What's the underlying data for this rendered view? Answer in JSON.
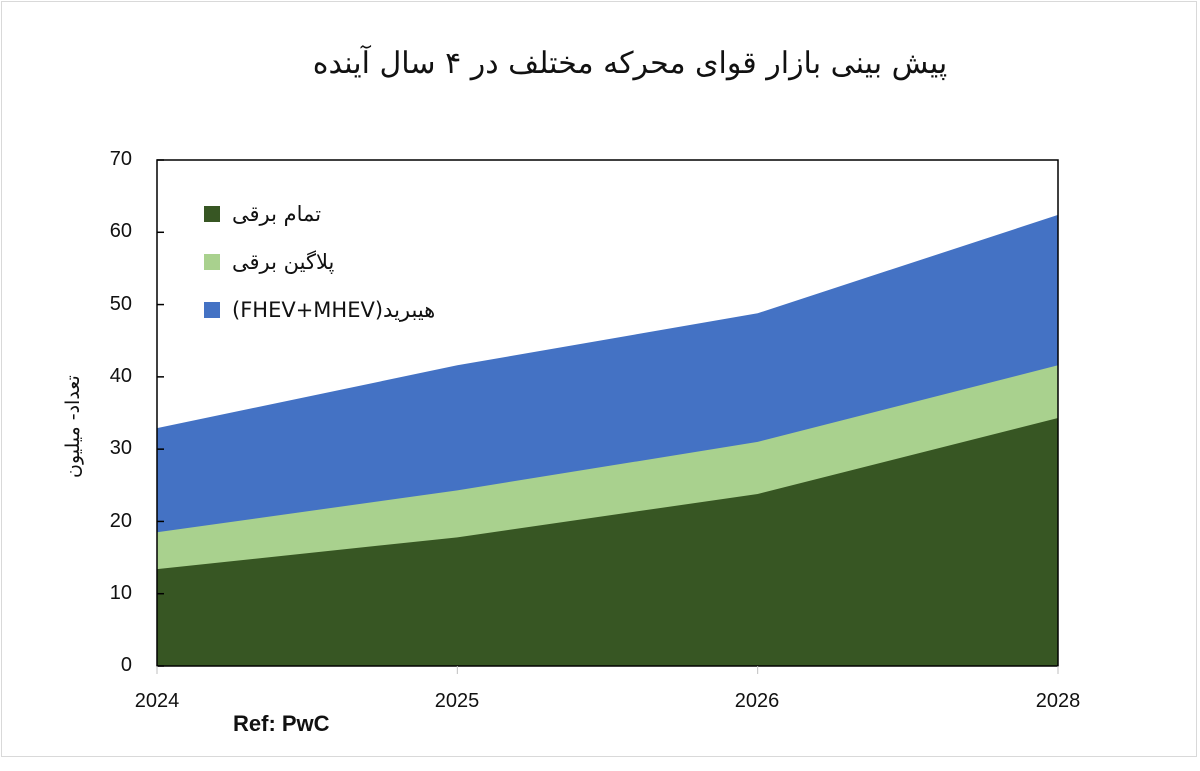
{
  "chart_data": {
    "type": "area",
    "stacked": true,
    "title": "پیش بینی بازار قوای محرکه مختلف در ۴ سال آینده",
    "xlabel": "",
    "ylabel": "تعداد- میلیون",
    "categories": [
      "2024",
      "2025",
      "2026",
      "2028"
    ],
    "ylim": [
      0,
      70
    ],
    "yticks": [
      0,
      10,
      20,
      30,
      40,
      50,
      60,
      70
    ],
    "grid": false,
    "legend_position": "upper-left-inside",
    "series": [
      {
        "name": "تمام برقی",
        "color": "#375623",
        "values": [
          13.4,
          17.8,
          23.8,
          34.3
        ]
      },
      {
        "name": "پلاگین برقی",
        "color": "#a9d18e",
        "values": [
          5.1,
          6.5,
          7.2,
          7.3
        ]
      },
      {
        "name": "هیبرید(FHEV+MHEV)",
        "color": "#4472c4",
        "values": [
          14.4,
          17.3,
          17.8,
          20.8
        ]
      }
    ],
    "cumulative_tops": {
      "full_electric": [
        13.4,
        17.8,
        23.8,
        34.3
      ],
      "plugin": [
        18.5,
        24.3,
        31.0,
        41.6
      ],
      "hybrid": [
        32.9,
        41.6,
        48.8,
        62.4
      ]
    },
    "annotations": [
      "Ref: PwC"
    ]
  },
  "title": "پیش بینی بازار قوای محرکه مختلف در ۴ سال آینده",
  "ylabel": "تعداد- میلیون",
  "yticks": [
    "70",
    "60",
    "50",
    "40",
    "30",
    "20",
    "10",
    "0"
  ],
  "xticks": [
    "2024",
    "2025",
    "2026",
    "2028"
  ],
  "legend": [
    {
      "label": "تمام برقی",
      "color": "#375623"
    },
    {
      "label": "پلاگین برقی",
      "color": "#a9d18e"
    },
    {
      "label": "هیبرید(FHEV+MHEV)",
      "color": "#4472c4"
    }
  ],
  "ref": "Ref: PwC"
}
